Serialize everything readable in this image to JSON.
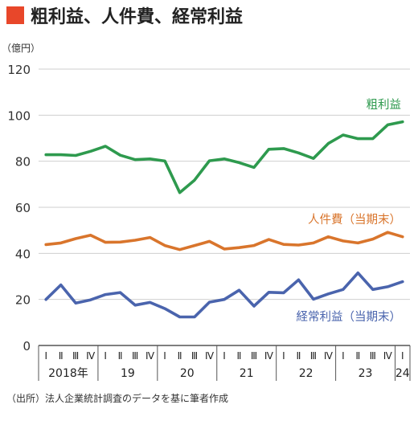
{
  "chart_data": {
    "type": "line",
    "title": "粗利益、人件費、経常利益",
    "title_marker_color": "#e8472a",
    "unit_label": "（億円）",
    "source": "（出所）法人企業統計調査のデータを基に筆者作成",
    "ylim": [
      0,
      120
    ],
    "yticks": [
      0,
      20,
      40,
      60,
      80,
      100,
      120
    ],
    "ytick_labels": [
      "0",
      "20",
      "40",
      "60",
      "80",
      "100",
      "120"
    ],
    "grid": true,
    "quarter_labels": [
      "Ⅰ",
      "Ⅱ",
      "Ⅲ",
      "Ⅳ",
      "Ⅰ",
      "Ⅱ",
      "Ⅲ",
      "Ⅳ",
      "Ⅰ",
      "Ⅱ",
      "Ⅲ",
      "Ⅳ",
      "Ⅰ",
      "Ⅱ",
      "Ⅲ",
      "Ⅳ",
      "Ⅰ",
      "Ⅱ",
      "Ⅲ",
      "Ⅳ",
      "Ⅰ",
      "Ⅱ",
      "Ⅲ",
      "Ⅳ",
      "Ⅰ"
    ],
    "year_labels": [
      "2018年",
      "19",
      "20",
      "21",
      "22",
      "23",
      "24"
    ],
    "x": [
      "2018-Q1",
      "2018-Q2",
      "2018-Q3",
      "2018-Q4",
      "2019-Q1",
      "2019-Q2",
      "2019-Q3",
      "2019-Q4",
      "2020-Q1",
      "2020-Q2",
      "2020-Q3",
      "2020-Q4",
      "2021-Q1",
      "2021-Q2",
      "2021-Q3",
      "2021-Q4",
      "2022-Q1",
      "2022-Q2",
      "2022-Q3",
      "2022-Q4",
      "2023-Q1",
      "2023-Q2",
      "2023-Q3",
      "2023-Q4",
      "2024-Q1"
    ],
    "series": [
      {
        "name": "粗利益",
        "color": "#2e9a4e",
        "values": [
          82.8,
          82.8,
          82.5,
          84.3,
          86.5,
          82.6,
          80.7,
          81.0,
          80.1,
          66.4,
          71.8,
          80.2,
          81.0,
          79.4,
          77.3,
          85.2,
          85.5,
          83.6,
          81.2,
          87.7,
          91.4,
          89.8,
          89.8,
          95.8,
          97.1
        ]
      },
      {
        "name": "人件費（当期末）",
        "color": "#d9752c",
        "values": [
          43.8,
          44.5,
          46.4,
          47.9,
          44.8,
          44.9,
          45.7,
          46.9,
          43.4,
          41.6,
          43.4,
          45.2,
          41.9,
          42.5,
          43.4,
          46.0,
          43.9,
          43.6,
          44.5,
          47.2,
          45.4,
          44.5,
          46.2,
          49.1,
          47.2
        ]
      },
      {
        "name": "経常利益（当期末）",
        "color": "#4a64ad",
        "values": [
          20.0,
          26.3,
          18.4,
          19.8,
          22.1,
          23.0,
          17.5,
          18.7,
          16.0,
          12.4,
          12.4,
          18.8,
          20.0,
          24.0,
          17.1,
          23.1,
          22.9,
          28.5,
          20.1,
          22.4,
          24.3,
          31.5,
          24.3,
          25.5,
          27.7
        ]
      }
    ]
  }
}
